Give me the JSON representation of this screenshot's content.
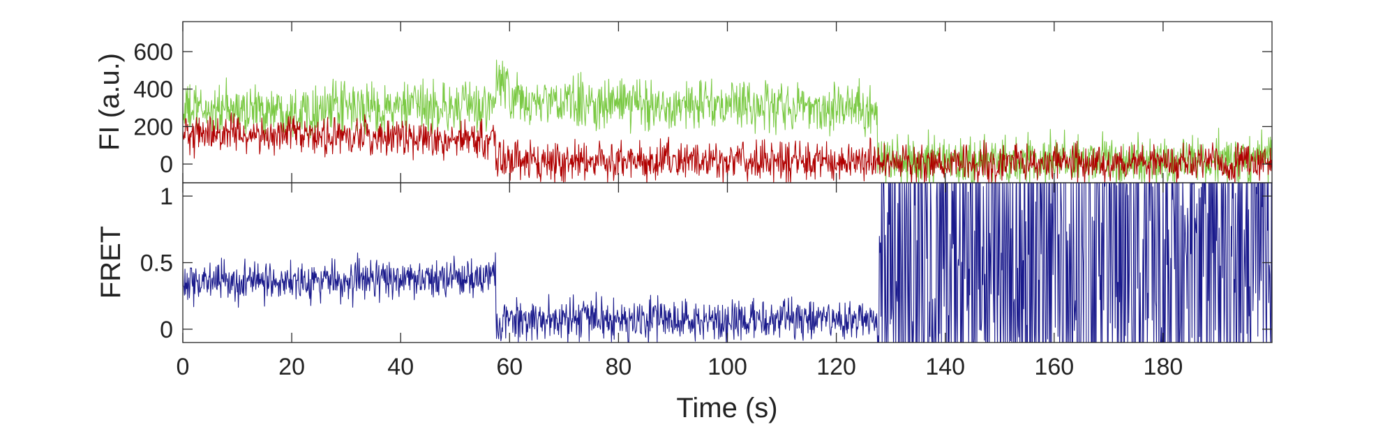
{
  "chart_data": [
    {
      "type": "line",
      "panel": "top",
      "title": "",
      "xlabel": "",
      "ylabel": "FI (a.u.)",
      "xlim": [
        0,
        200
      ],
      "ylim": [
        -100,
        760
      ],
      "xticks": [
        0,
        20,
        40,
        60,
        80,
        100,
        120,
        140,
        160,
        180
      ],
      "yticks": [
        0,
        200,
        400,
        600
      ],
      "grid": false,
      "legend": "none",
      "noise_level": {
        "green": 95,
        "red": 70
      },
      "series": [
        {
          "color": "#7ac943",
          "segments": [
            {
              "x": [
                0,
                57.5
              ],
              "mean": [
                285,
                305
              ]
            },
            {
              "x": [
                57.5,
                60
              ],
              "mean": [
                450,
                420
              ]
            },
            {
              "x": [
                60,
                127.5
              ],
              "mean": [
                330,
                300
              ]
            },
            {
              "x": [
                127.5,
                200
              ],
              "mean": [
                15,
                15
              ]
            }
          ]
        },
        {
          "color": "#b00000",
          "segments": [
            {
              "x": [
                0,
                57.5
              ],
              "mean": [
                165,
                130
              ]
            },
            {
              "x": [
                57.5,
                127.5
              ],
              "mean": [
                20,
                20
              ]
            },
            {
              "x": [
                127.5,
                200
              ],
              "mean": [
                5,
                5
              ]
            }
          ]
        }
      ]
    },
    {
      "type": "line",
      "panel": "bottom",
      "title": "",
      "xlabel": "Time (s)",
      "ylabel": "FRET",
      "xlim": [
        0,
        200
      ],
      "ylim": [
        -0.1,
        1.1
      ],
      "xticks": [
        0,
        20,
        40,
        60,
        80,
        100,
        120,
        140,
        160,
        180
      ],
      "xtick_labels": [
        "0",
        "20",
        "40",
        "60",
        "80",
        "100",
        "120",
        "140",
        "160",
        "180"
      ],
      "yticks": [
        0,
        0.5,
        1
      ],
      "ytick_labels": [
        "0",
        "0.5",
        "1"
      ],
      "grid": false,
      "legend": "none",
      "noise_level": 0.11,
      "series": [
        {
          "color": "#1a1a8c",
          "segments": [
            {
              "x": [
                0,
                57.5
              ],
              "mean": [
                0.36,
                0.38
              ]
            },
            {
              "x": [
                57.5,
                127.5
              ],
              "mean": [
                0.07,
                0.07
              ]
            },
            {
              "x": [
                127.5,
                200
              ],
              "mean": [
                0.5,
                0.5
              ],
              "random_full_range": true
            }
          ]
        }
      ]
    }
  ]
}
